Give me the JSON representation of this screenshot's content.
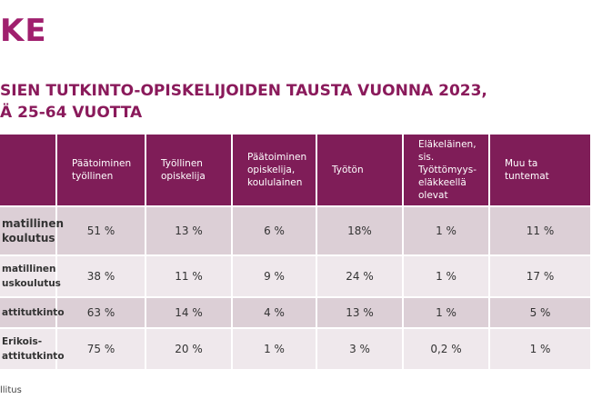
{
  "logo": "KE",
  "title": [
    "SIEN TUTKINTO-OPISKELIJOIDEN TAUSTA VUONNA 2023,",
    "Ä 25-64 VUOTTA"
  ],
  "table": {
    "header": [
      "",
      "Päätoiminen työllinen",
      "Työllinen opiskelija",
      "Päätoiminen opiskelija, koululainen",
      "Työtön",
      "Eläkeläinen, sis. Työttömyys-eläkkeellä olevat",
      "Muu ta tuntemat"
    ],
    "rows": [
      [
        "matillinen koulutus",
        "51 %",
        "13 %",
        "6 %",
        "18%",
        "1 %",
        "11 %"
      ],
      [
        "matillinen uskoulutus",
        "38 %",
        "11 %",
        "9 %",
        "24 %",
        "1 %",
        "17 %"
      ],
      [
        "attitutkinto",
        "63 %",
        "14 %",
        "4 %",
        "13 %",
        "1 %",
        "5 %"
      ],
      [
        "Erikois- attitutkinto",
        "75 %",
        "20 %",
        "1 %",
        "3 %",
        "0,2 %",
        "1 %"
      ]
    ]
  },
  "footer": "llitus"
}
